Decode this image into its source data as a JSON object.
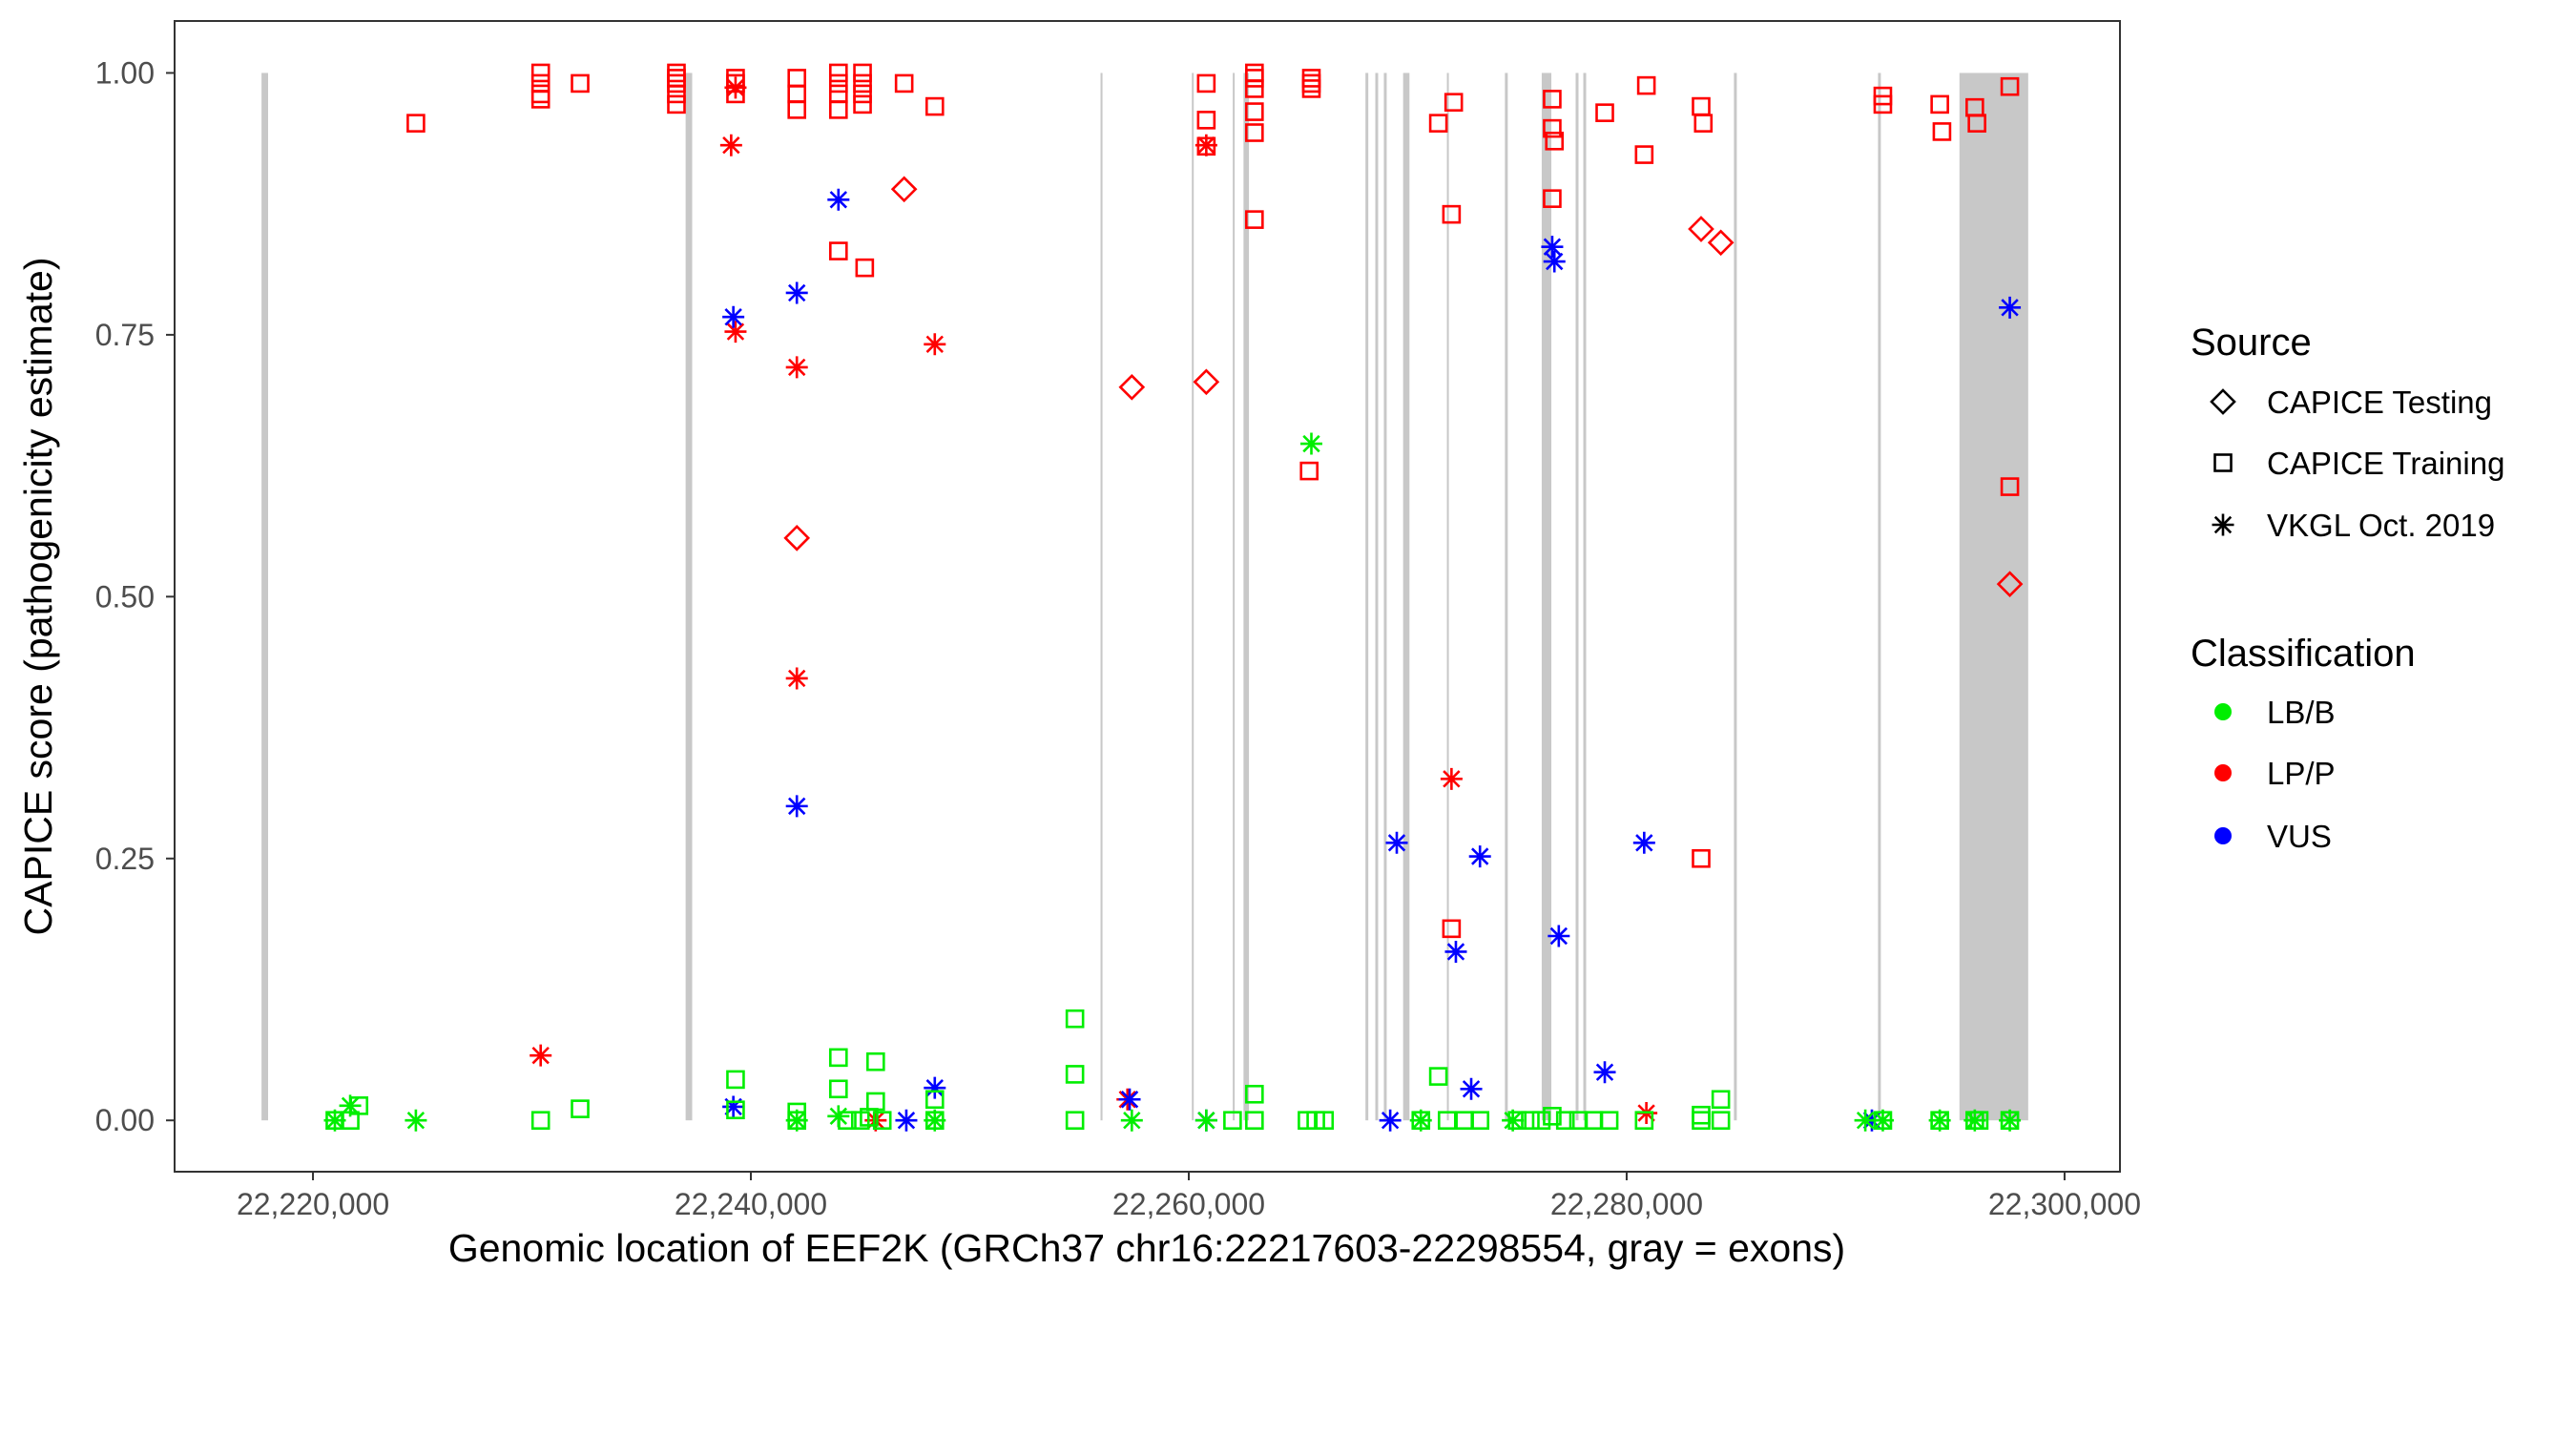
{
  "chart_data": {
    "type": "scatter",
    "xlabel": "Genomic location of EEF2K (GRCh37 chr16:22217603-22298554, gray = exons)",
    "ylabel": "CAPICE score (pathogenicity estimate)",
    "xlim": [
      22213680,
      22302530
    ],
    "ylim": [
      -0.049,
      1.0496
    ],
    "x_ticks": [
      22220000,
      22240000,
      22260000,
      22280000,
      22300000
    ],
    "x_tick_labels": [
      "22,220,000",
      "22,240,000",
      "22,260,000",
      "22,280,000",
      "22,300,000"
    ],
    "y_ticks": [
      0,
      0.25,
      0.5,
      0.75,
      1.0
    ],
    "y_tick_labels": [
      "0.00",
      "0.25",
      "0.50",
      "0.75",
      "1.00"
    ],
    "grid": false,
    "legend_position": "right",
    "colors": {
      "LB/B": "#00EE00",
      "LP/P": "#FF0000",
      "VUS": "#0000FF",
      "exon": "#C8C8C8",
      "axis": "#333333"
    },
    "exons": [
      [
        22217650,
        22217950
      ],
      [
        22237020,
        22237320
      ],
      [
        22255970,
        22256060
      ],
      [
        22260140,
        22260210
      ],
      [
        22262010,
        22262080
      ],
      [
        22262500,
        22262750
      ],
      [
        22268070,
        22268200
      ],
      [
        22268520,
        22268650
      ],
      [
        22268910,
        22269040
      ],
      [
        22269790,
        22270080
      ],
      [
        22271790,
        22271840
      ],
      [
        22274440,
        22274570
      ],
      [
        22276120,
        22276560
      ],
      [
        22277670,
        22277800
      ],
      [
        22278020,
        22278150
      ],
      [
        22284900,
        22285030
      ],
      [
        22291480,
        22291610
      ],
      [
        22295200,
        22298340
      ]
    ],
    "legend": {
      "source_title": "Source",
      "source_items": [
        {
          "label": "CAPICE Testing",
          "shape": "diamond"
        },
        {
          "label": "CAPICE Training",
          "shape": "square"
        },
        {
          "label": "VKGL Oct. 2019",
          "shape": "star"
        }
      ],
      "class_title": "Classification",
      "class_items": [
        {
          "label": "LB/B"
        },
        {
          "label": "LP/P"
        },
        {
          "label": "VUS"
        }
      ]
    },
    "series": [
      {
        "source": "CAPICE Training",
        "classification": "LP/P",
        "points": [
          [
            22224700,
            0.952
          ],
          [
            22230400,
            1.0
          ],
          [
            22230400,
            0.99
          ],
          [
            22230400,
            0.98
          ],
          [
            22230400,
            0.975
          ],
          [
            22232200,
            0.99
          ],
          [
            22236600,
            1.0
          ],
          [
            22236600,
            0.995
          ],
          [
            22236600,
            0.99
          ],
          [
            22236600,
            0.98
          ],
          [
            22236600,
            0.97
          ],
          [
            22239300,
            0.995
          ],
          [
            22239300,
            0.99
          ],
          [
            22239300,
            0.98
          ],
          [
            22242100,
            0.995
          ],
          [
            22242100,
            0.98
          ],
          [
            22242100,
            0.965
          ],
          [
            22244000,
            1.0
          ],
          [
            22244000,
            0.99
          ],
          [
            22244000,
            0.98
          ],
          [
            22244000,
            0.965
          ],
          [
            22245100,
            1.0
          ],
          [
            22245100,
            0.99
          ],
          [
            22245100,
            0.98
          ],
          [
            22245100,
            0.97
          ],
          [
            22247000,
            0.99
          ],
          [
            22248400,
            0.968
          ],
          [
            22244000,
            0.83
          ],
          [
            22245200,
            0.814
          ],
          [
            22260800,
            0.99
          ],
          [
            22260800,
            0.955
          ],
          [
            22260800,
            0.93
          ],
          [
            22263000,
            1.0
          ],
          [
            22263000,
            0.995
          ],
          [
            22263000,
            0.985
          ],
          [
            22263000,
            0.963
          ],
          [
            22263000,
            0.943
          ],
          [
            22263000,
            0.86
          ],
          [
            22265600,
            0.995
          ],
          [
            22265600,
            0.99
          ],
          [
            22265600,
            0.985
          ],
          [
            22265500,
            0.62
          ],
          [
            22271400,
            0.952
          ],
          [
            22272100,
            0.972
          ],
          [
            22272000,
            0.865
          ],
          [
            22272000,
            0.183
          ],
          [
            22276600,
            0.975
          ],
          [
            22276600,
            0.947
          ],
          [
            22276700,
            0.935
          ],
          [
            22276600,
            0.88
          ],
          [
            22279000,
            0.962
          ],
          [
            22280900,
            0.988
          ],
          [
            22280800,
            0.922
          ],
          [
            22283400,
            0.968
          ],
          [
            22283500,
            0.952
          ],
          [
            22283400,
            0.25
          ],
          [
            22291700,
            0.978
          ],
          [
            22291700,
            0.97
          ],
          [
            22294300,
            0.97
          ],
          [
            22294400,
            0.944
          ],
          [
            22295900,
            0.967
          ],
          [
            22296000,
            0.952
          ],
          [
            22297500,
            0.987
          ],
          [
            22297500,
            0.605
          ]
        ]
      },
      {
        "source": "CAPICE Testing",
        "classification": "LP/P",
        "points": [
          [
            22247000,
            0.889
          ],
          [
            22242100,
            0.556
          ],
          [
            22257400,
            0.7
          ],
          [
            22260800,
            0.705
          ],
          [
            22283400,
            0.851
          ],
          [
            22284300,
            0.838
          ],
          [
            22297500,
            0.512
          ]
        ]
      },
      {
        "source": "VKGL Oct. 2019",
        "classification": "LP/P",
        "points": [
          [
            22239100,
            0.931
          ],
          [
            22239300,
            0.753
          ],
          [
            22242100,
            0.719
          ],
          [
            22248400,
            0.741
          ],
          [
            22242100,
            0.422
          ],
          [
            22230400,
            0.062
          ],
          [
            22260800,
            0.931
          ],
          [
            22272000,
            0.326
          ],
          [
            22280900,
            0.007
          ],
          [
            22245700,
            0.0
          ],
          [
            22239300,
            0.986
          ],
          [
            22257200,
            0.02
          ]
        ]
      },
      {
        "source": "VKGL Oct. 2019",
        "classification": "VUS",
        "points": [
          [
            22244000,
            0.879
          ],
          [
            22242100,
            0.79
          ],
          [
            22239200,
            0.767
          ],
          [
            22242100,
            0.3
          ],
          [
            22239200,
            0.013
          ],
          [
            22247100,
            0.0
          ],
          [
            22248400,
            0.031
          ],
          [
            22257300,
            0.02
          ],
          [
            22260800,
            0.0
          ],
          [
            22276600,
            0.834
          ],
          [
            22276700,
            0.82
          ],
          [
            22269500,
            0.265
          ],
          [
            22273300,
            0.252
          ],
          [
            22272200,
            0.161
          ],
          [
            22276900,
            0.176
          ],
          [
            22272900,
            0.03
          ],
          [
            22279000,
            0.046
          ],
          [
            22280800,
            0.265
          ],
          [
            22297500,
            0.776
          ],
          [
            22269200,
            0.0
          ],
          [
            22291200,
            0.0
          ]
        ]
      },
      {
        "source": "CAPICE Training",
        "classification": "LB/B",
        "points": [
          [
            22221000,
            0.0
          ],
          [
            22221700,
            0.0
          ],
          [
            22222100,
            0.014
          ],
          [
            22230400,
            0.0
          ],
          [
            22232200,
            0.011
          ],
          [
            22239300,
            0.039
          ],
          [
            22239300,
            0.01
          ],
          [
            22242100,
            0.0
          ],
          [
            22242100,
            0.008
          ],
          [
            22244000,
            0.06
          ],
          [
            22244000,
            0.03
          ],
          [
            22245700,
            0.056
          ],
          [
            22245700,
            0.018
          ],
          [
            22244400,
            0.0
          ],
          [
            22245000,
            0.0
          ],
          [
            22245400,
            0.003
          ],
          [
            22246000,
            0.0
          ],
          [
            22248400,
            0.02
          ],
          [
            22248400,
            0.0
          ],
          [
            22254800,
            0.097
          ],
          [
            22254800,
            0.044
          ],
          [
            22254800,
            0.0
          ],
          [
            22263000,
            0.025
          ],
          [
            22262000,
            0.0
          ],
          [
            22263000,
            0.0
          ],
          [
            22265400,
            0.0
          ],
          [
            22265800,
            0.0
          ],
          [
            22266200,
            0.0
          ],
          [
            22271400,
            0.042
          ],
          [
            22270600,
            0.0
          ],
          [
            22271800,
            0.0
          ],
          [
            22272600,
            0.0
          ],
          [
            22273300,
            0.0
          ],
          [
            22275000,
            0.0
          ],
          [
            22275600,
            0.0
          ],
          [
            22276100,
            0.0
          ],
          [
            22276600,
            0.004
          ],
          [
            22277200,
            0.0
          ],
          [
            22277800,
            0.0
          ],
          [
            22278500,
            0.0
          ],
          [
            22279200,
            0.0
          ],
          [
            22280800,
            0.0
          ],
          [
            22283400,
            0.0
          ],
          [
            22283400,
            0.005
          ],
          [
            22284300,
            0.02
          ],
          [
            22284300,
            0.0
          ],
          [
            22291700,
            0.0
          ],
          [
            22294300,
            0.0
          ],
          [
            22295900,
            0.0
          ],
          [
            22296100,
            0.0
          ],
          [
            22297500,
            0.0
          ]
        ]
      },
      {
        "source": "VKGL Oct. 2019",
        "classification": "LB/B",
        "points": [
          [
            22221000,
            0.0
          ],
          [
            22221700,
            0.014
          ],
          [
            22224700,
            0.0
          ],
          [
            22242100,
            0.0
          ],
          [
            22244000,
            0.004
          ],
          [
            22248400,
            0.0
          ],
          [
            22257400,
            0.0
          ],
          [
            22260800,
            0.0
          ],
          [
            22265600,
            0.646
          ],
          [
            22270600,
            0.0
          ],
          [
            22274800,
            0.0
          ],
          [
            22290900,
            0.0
          ],
          [
            22291700,
            0.0
          ],
          [
            22294300,
            0.0
          ],
          [
            22295900,
            0.0
          ],
          [
            22297500,
            0.0
          ]
        ]
      }
    ]
  }
}
